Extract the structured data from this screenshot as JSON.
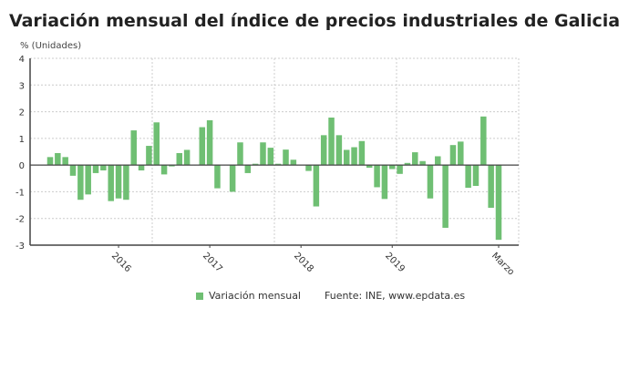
{
  "chart_data": {
    "type": "bar",
    "title": "Variación mensual del índice de precios industriales de Galicia",
    "ylabel": "% (Unidades)",
    "xlabel": "",
    "ylim": [
      -3,
      4
    ],
    "yticks": [
      4,
      3,
      2,
      1,
      0,
      -1,
      -2,
      -3
    ],
    "grid": true,
    "legend_position": "bottom",
    "color": "#6fbf73",
    "categories": [
      "2015-04",
      "2015-05",
      "2015-06",
      "2015-07",
      "2015-08",
      "2015-09",
      "2015-10",
      "2015-11",
      "2015-12",
      "2016-01",
      "2016-02",
      "2016-03",
      "2016-04",
      "2016-05",
      "2016-06",
      "2016-07",
      "2016-08",
      "2016-09",
      "2016-10",
      "2016-11",
      "2016-12",
      "2017-01",
      "2017-02",
      "2017-03",
      "2017-04",
      "2017-05",
      "2017-06",
      "2017-07",
      "2017-08",
      "2017-09",
      "2017-10",
      "2017-11",
      "2017-12",
      "2018-01",
      "2018-02",
      "2018-03",
      "2018-04",
      "2018-05",
      "2018-06",
      "2018-07",
      "2018-08",
      "2018-09",
      "2018-10",
      "2018-11",
      "2018-12",
      "2019-01",
      "2019-02",
      "2019-03",
      "2019-04",
      "2019-05",
      "2019-06",
      "2019-07",
      "2019-08",
      "2019-09",
      "2019-10",
      "2019-11",
      "2019-12",
      "2020-01",
      "2020-02",
      "2020-03"
    ],
    "series": [
      {
        "name": "Variación mensual",
        "values": [
          0.3,
          0.45,
          0.3,
          -0.4,
          -1.3,
          -1.1,
          -0.3,
          -0.2,
          -1.35,
          -1.25,
          -1.3,
          1.3,
          -0.2,
          0.72,
          1.6,
          -0.35,
          -0.05,
          0.45,
          0.57,
          0,
          1.42,
          1.68,
          -0.87,
          0,
          -1.0,
          0.85,
          -0.3,
          0.05,
          0.85,
          0.65,
          0.05,
          0.58,
          0.2,
          0,
          -0.22,
          -1.55,
          1.12,
          1.78,
          1.12,
          0.57,
          0.67,
          0.9,
          -0.1,
          -0.83,
          -1.27,
          -0.15,
          -0.33,
          0.08,
          0.48,
          0.15,
          -1.25,
          0.33,
          -2.35,
          0.75,
          0.88,
          -0.85,
          -0.78,
          1.82,
          -1.6,
          -2.8
        ]
      }
    ],
    "xtick_labels": [
      {
        "index": 9,
        "label": "2016"
      },
      {
        "index": 21,
        "label": "2017"
      },
      {
        "index": 33,
        "label": "2018"
      },
      {
        "index": 45,
        "label": "2019"
      },
      {
        "index": 59,
        "label": "Marzo"
      }
    ]
  },
  "source": "Fuente: INE, www.epdata.es"
}
